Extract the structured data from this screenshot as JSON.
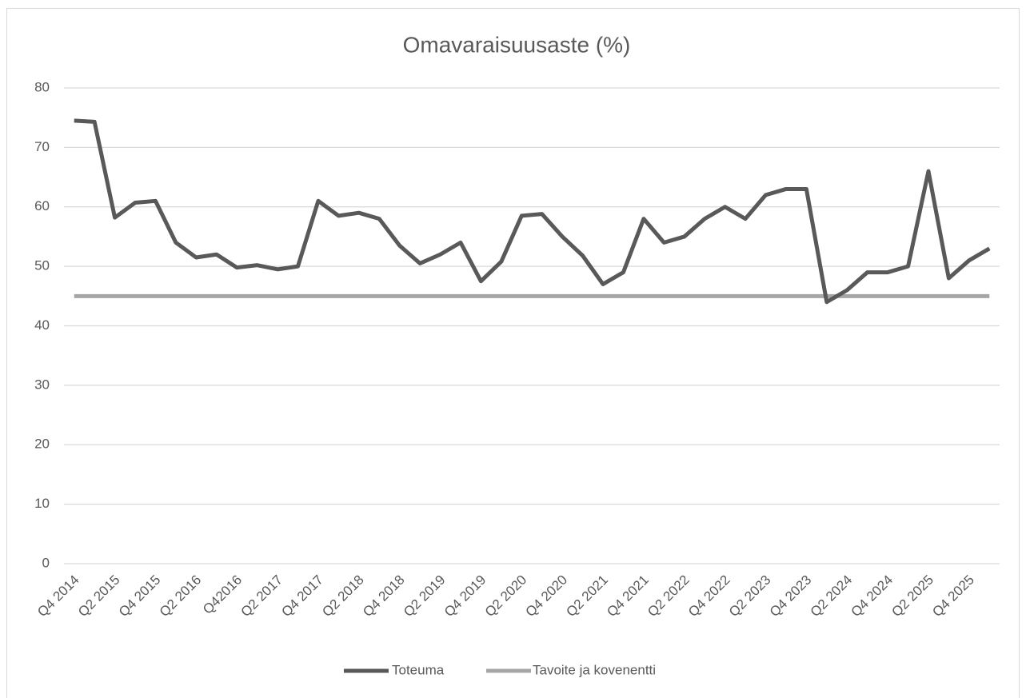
{
  "chart_data": {
    "type": "line",
    "title": "Omavaraisuusaste (%)",
    "categories": [
      "Q4 2014",
      null,
      "Q2 2015",
      null,
      "Q4 2015",
      null,
      "Q2 2016",
      null,
      "Q42016",
      null,
      "Q2 2017",
      null,
      "Q4 2017",
      null,
      "Q2 2018",
      null,
      "Q4 2018",
      null,
      "Q2 2019",
      null,
      "Q4 2019",
      null,
      "Q2 2020",
      null,
      "Q4 2020",
      null,
      "Q2 2021",
      null,
      "Q4 2021",
      null,
      "Q2 2022",
      null,
      "Q4 2022",
      null,
      "Q2 2023",
      null,
      "Q4 2023",
      null,
      "Q2 2024",
      null,
      "Q4 2024",
      null,
      "Q2 2025",
      null,
      "Q4 2025",
      null
    ],
    "series": [
      {
        "name": "Toteuma",
        "color": "#595959",
        "values": [
          74.5,
          74.3,
          58.2,
          60.7,
          61,
          54,
          51.5,
          52,
          49.8,
          50.2,
          49.5,
          50,
          61,
          58.5,
          59,
          58,
          53.5,
          50.5,
          52,
          54,
          47.5,
          50.8,
          58.5,
          58.8,
          55,
          51.8,
          47,
          49,
          58,
          54,
          55,
          58,
          60,
          58,
          62,
          63,
          63,
          44,
          46,
          49,
          49,
          50,
          66,
          48,
          51,
          53
        ]
      },
      {
        "name": "Tavoite ja kovenentti",
        "color": "#a6a6a6",
        "values": [
          45,
          45,
          45,
          45,
          45,
          45,
          45,
          45,
          45,
          45,
          45,
          45,
          45,
          45,
          45,
          45,
          45,
          45,
          45,
          45,
          45,
          45,
          45,
          45,
          45,
          45,
          45,
          45,
          45,
          45,
          45,
          45,
          45,
          45,
          45,
          45,
          45,
          45,
          45,
          45,
          45,
          45,
          45,
          45,
          45,
          45
        ]
      }
    ],
    "ylim": [
      0,
      80
    ],
    "yticks": [
      0,
      10,
      20,
      30,
      40,
      50,
      60,
      70,
      80
    ],
    "grid": true,
    "legend": "bottom"
  }
}
